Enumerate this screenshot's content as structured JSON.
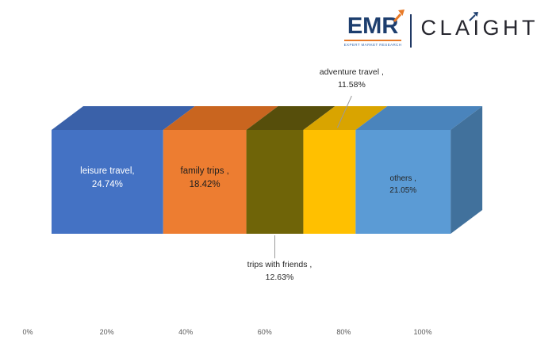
{
  "logo": {
    "emr_text": "EMR",
    "tagline": "EXPERT MARKET RESEARCH",
    "brand_text": "CLAIGHT",
    "navy": "#1D3E6E",
    "orange": "#E87A28",
    "brand_color": "#26262E"
  },
  "chart_data": {
    "type": "bar",
    "variant": "3d-horizontal-stacked",
    "title": "",
    "unit": "%",
    "legend": "none",
    "axis": {
      "ticks": [
        "0%",
        "20%",
        "40%",
        "60%",
        "80%",
        "100%"
      ],
      "tick_values": [
        0,
        20,
        40,
        60,
        80,
        100
      ],
      "color": "#595959"
    },
    "series": [
      {
        "name": "leisure travel",
        "value": 24.74,
        "label_line1": "leisure travel,",
        "label_line2": "24.74%",
        "color": "#4472C4",
        "top_color": "#3A61A9",
        "label_placement": "inside",
        "label_color": "#FFFFFF"
      },
      {
        "name": "family trips",
        "value": 18.42,
        "label_line1": "family trips ,",
        "label_line2": "18.42%",
        "color": "#ED7D31",
        "top_color": "#C9651F",
        "label_placement": "inside",
        "label_color": "#1F1F1F"
      },
      {
        "name": "trips with friends",
        "value": 12.63,
        "label_line1": "trips with friends ,",
        "label_line2": "12.63%",
        "color": "#6F6408",
        "top_color": "#564E0B",
        "label_placement": "below",
        "label_color": "#262626"
      },
      {
        "name": "adventure travel",
        "value": 11.58,
        "label_line1": "adventure travel ,",
        "label_line2": "11.58%",
        "color": "#FFC000",
        "top_color": "#D9A400",
        "label_placement": "above",
        "label_color": "#262626"
      },
      {
        "name": "others",
        "value": 21.05,
        "label_line1": "others ,",
        "label_line2": "21.05%",
        "color": "#5B9BD5",
        "top_color": "#4A84BC",
        "label_placement": "inside",
        "label_color": "#262626"
      }
    ],
    "side_color": "#41719C"
  }
}
